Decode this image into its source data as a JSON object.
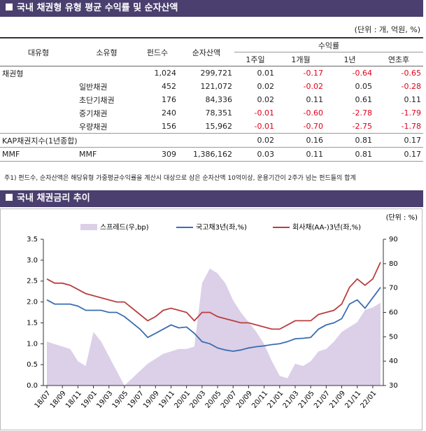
{
  "header1": {
    "title": "국내 채권형 유형 평균 수익률 및 순자산액"
  },
  "unit_note": "(단위 : 개, 억원, %)",
  "table": {
    "columns": [
      "대유형",
      "소유형",
      "펀드수",
      "순자산액"
    ],
    "group_header": "수익률",
    "return_columns": [
      "1주일",
      "1개월",
      "1년",
      "연초후"
    ],
    "rows": [
      {
        "type": "채권형",
        "count": "1,024",
        "aum": "299,721",
        "returns": [
          "0.01",
          "-0.17",
          "-0.64",
          "-0.65"
        ]
      },
      {
        "subtype": "일반채권",
        "count": "452",
        "aum": "121,072",
        "returns": [
          "0.02",
          "-0.02",
          "0.05",
          "-0.28"
        ]
      },
      {
        "subtype": "초단기채권",
        "count": "176",
        "aum": "84,336",
        "returns": [
          "0.02",
          "0.11",
          "0.61",
          "0.11"
        ]
      },
      {
        "subtype": "중기채권",
        "count": "240",
        "aum": "78,351",
        "returns": [
          "-0.01",
          "-0.60",
          "-2.78",
          "-1.79"
        ]
      },
      {
        "subtype": "우량채권",
        "count": "156",
        "aum": "15,962",
        "returns": [
          "-0.01",
          "-0.70",
          "-2.75",
          "-1.78"
        ]
      },
      {
        "type": "KAP채권지수(1년종합)",
        "returns": [
          "0.02",
          "0.16",
          "0.81",
          "0.17"
        ]
      },
      {
        "type": "MMF",
        "subtype": "MMF",
        "count": "309",
        "aum": "1,386,162",
        "returns": [
          "0.03",
          "0.11",
          "0.81",
          "0.17"
        ]
      }
    ]
  },
  "footnote": "주1) 펀드수, 순자산액은 해당유형 가중평균수익률을 계산시 대상으로 삼은 순자산액 10억이상, 운용기간이 2주가 넘는 펀드들의 합계",
  "header2": {
    "title": "국내 채권금리 추이"
  },
  "chart_data": {
    "type": "line",
    "unit_note": "(단위 : %)",
    "x": [
      "18/07",
      "18/08",
      "18/09",
      "18/10",
      "18/11",
      "18/12",
      "19/01",
      "19/02",
      "19/03",
      "19/04",
      "19/05",
      "19/06",
      "19/07",
      "19/08",
      "19/09",
      "19/10",
      "19/11",
      "19/12",
      "20/01",
      "20/02",
      "20/03",
      "20/04",
      "20/05",
      "20/06",
      "20/07",
      "20/08",
      "20/09",
      "20/10",
      "20/11",
      "20/12",
      "21/01",
      "21/02",
      "21/03",
      "21/04",
      "21/05",
      "21/06",
      "21/07",
      "21/08",
      "21/09",
      "21/10",
      "21/11",
      "21/12",
      "22/01",
      "22/02"
    ],
    "xticks": [
      "18/07",
      "18/09",
      "18/11",
      "19/01",
      "19/03",
      "19/05",
      "19/07",
      "19/09",
      "19/11",
      "20/01",
      "20/03",
      "20/05",
      "20/07",
      "20/09",
      "20/11",
      "21/01",
      "21/03",
      "21/05",
      "21/07",
      "21/09",
      "21/11",
      "22/01"
    ],
    "ylim": [
      0,
      3.5
    ],
    "yticks": [
      {
        "value": 0,
        "label": "0.0"
      },
      0.5,
      {
        "value": 1,
        "label": "1.0"
      },
      1.5,
      {
        "value": 2,
        "label": "2.0"
      },
      2.5,
      {
        "value": 3,
        "label": "3.0"
      },
      3.5
    ],
    "y2lim": [
      30,
      90
    ],
    "y2ticks": [
      30,
      40,
      50,
      60,
      70,
      80,
      90
    ],
    "series": [
      {
        "name": "스프레드(우,bp)",
        "color": "#dccfe8",
        "kind": "area",
        "axis": "y2",
        "values": [
          48,
          47,
          46,
          45,
          40,
          38,
          52,
          48,
          42,
          36,
          30,
          33,
          36,
          39,
          41,
          43,
          44,
          45,
          45,
          46,
          72,
          78,
          76,
          72,
          65,
          60,
          56,
          52,
          47,
          40,
          34,
          33,
          39,
          38,
          40,
          44,
          45,
          48,
          52,
          54,
          56,
          61,
          62,
          64
        ]
      },
      {
        "name": "국고채3년(좌,%)",
        "color": "#3a6db0",
        "values": [
          2.05,
          1.95,
          1.95,
          1.95,
          1.9,
          1.8,
          1.8,
          1.8,
          1.75,
          1.75,
          1.65,
          1.5,
          1.35,
          1.15,
          1.25,
          1.35,
          1.45,
          1.38,
          1.4,
          1.25,
          1.05,
          1.0,
          0.9,
          0.85,
          0.82,
          0.85,
          0.9,
          0.93,
          0.95,
          0.98,
          1.0,
          1.05,
          1.12,
          1.13,
          1.15,
          1.35,
          1.45,
          1.5,
          1.6,
          1.95,
          2.05,
          1.85,
          2.1,
          2.35
        ]
      },
      {
        "name": "회사채(AA-)3년(좌,%)",
        "color": "#b83f3f",
        "values": [
          2.55,
          2.45,
          2.45,
          2.4,
          2.3,
          2.2,
          2.15,
          2.1,
          2.05,
          2.0,
          2.0,
          1.85,
          1.7,
          1.55,
          1.65,
          1.8,
          1.85,
          1.8,
          1.75,
          1.55,
          1.75,
          1.75,
          1.65,
          1.6,
          1.55,
          1.5,
          1.5,
          1.45,
          1.4,
          1.35,
          1.35,
          1.45,
          1.55,
          1.55,
          1.55,
          1.7,
          1.75,
          1.8,
          1.95,
          2.35,
          2.55,
          2.4,
          2.55,
          2.95
        ]
      }
    ]
  }
}
